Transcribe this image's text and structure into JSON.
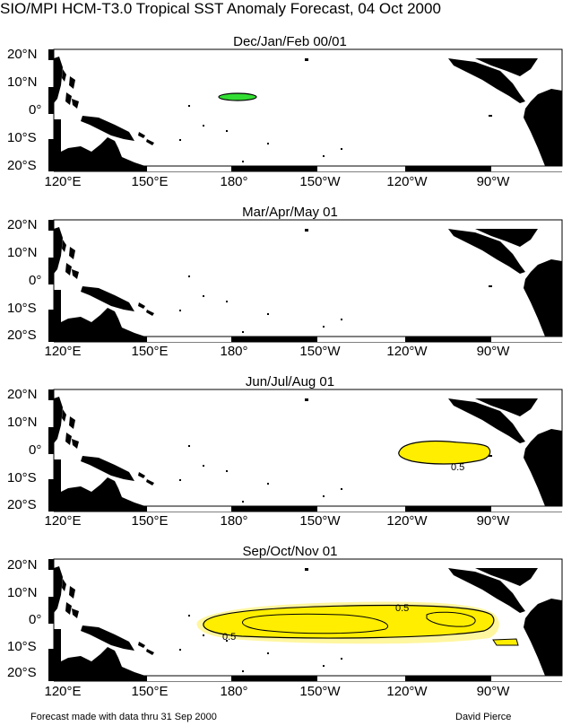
{
  "title": "SIO/MPI HCM-T3.0 Tropical SST Anomaly Forecast, 04 Oct 2000",
  "lat_labels": [
    "20°N",
    "10°N",
    "0°",
    "10°S",
    "20°S"
  ],
  "lon_labels": [
    "120°E",
    "150°E",
    "180°",
    "150°W",
    "120°W",
    "90°W"
  ],
  "panels": [
    {
      "title": "Dec/Jan/Feb 00/01",
      "contour_labels": []
    },
    {
      "title": "Mar/Apr/May 01",
      "contour_labels": []
    },
    {
      "title": "Jun/Jul/Aug 01",
      "contour_labels": [
        "0.5"
      ]
    },
    {
      "title": "Sep/Oct/Nov 01",
      "contour_labels": [
        "0.5",
        "0.5"
      ]
    }
  ],
  "footer": {
    "left": "Forecast made with data thru 31 Sep 2000",
    "right": "David Pierce"
  },
  "colors": {
    "land": "#000000",
    "anomaly_fill": "#ffee00",
    "anomaly_fill_light": "#fff6a0",
    "negative_fill": "#33dd33"
  }
}
